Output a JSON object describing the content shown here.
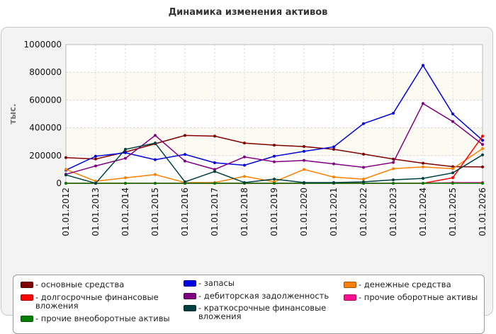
{
  "chart_data": {
    "type": "line",
    "title": "Динамика изменения активов",
    "ylabel": "тыс.",
    "xlabel": "",
    "ylim": [
      0,
      1000000
    ],
    "yticks": [
      "0",
      "200000",
      "400000",
      "600000",
      "800000",
      "1000000"
    ],
    "grid": true,
    "legend_position": "bottom",
    "categories": [
      "01.01.2012",
      "01.01.2013",
      "01.01.2014",
      "01.01.2015",
      "01.01.2016",
      "01.01.2017",
      "01.01.2018",
      "01.01.2019",
      "01.01.2020",
      "01.01.2021",
      "01.01.2022",
      "01.01.2023",
      "01.01.2024",
      "01.01.2025",
      "01.01.2026"
    ],
    "series": [
      {
        "name": "- основные средства",
        "color": "#800000",
        "values": [
          185000,
          175000,
          225000,
          285000,
          345000,
          340000,
          290000,
          275000,
          265000,
          245000,
          210000,
          175000,
          145000,
          120000,
          118000
        ]
      },
      {
        "name": "- запасы",
        "color": "#0000e0",
        "values": [
          95000,
          195000,
          220000,
          170000,
          208000,
          148000,
          130000,
          195000,
          230000,
          262000,
          430000,
          505000,
          850000,
          500000,
          310000
        ]
      },
      {
        "name": "- денежные средства",
        "color": "#ff8000",
        "values": [
          100000,
          15000,
          40000,
          63000,
          5000,
          5000,
          50000,
          10000,
          100000,
          45000,
          30000,
          105000,
          118000,
          105000,
          250000
        ]
      },
      {
        "name": "- долгосрочные финансовые вложения",
        "color": "#ff0000",
        "values": [
          0,
          0,
          0,
          0,
          0,
          0,
          0,
          0,
          0,
          0,
          0,
          0,
          0,
          40000,
          340000
        ]
      },
      {
        "name": "- дебиторская задолженность",
        "color": "#800080",
        "values": [
          65000,
          125000,
          180000,
          345000,
          160000,
          100000,
          190000,
          155000,
          165000,
          140000,
          115000,
          150000,
          575000,
          445000,
          280000
        ]
      },
      {
        "name": "- прочие оборотные активы",
        "color": "#ff1090",
        "values": [
          0,
          0,
          0,
          0,
          0,
          0,
          0,
          0,
          0,
          0,
          0,
          0,
          0,
          5000,
          5000
        ]
      },
      {
        "name": "- прочие внеоборотные активы",
        "color": "#008000",
        "values": [
          0,
          0,
          0,
          0,
          0,
          0,
          0,
          0,
          0,
          0,
          0,
          0,
          0,
          0,
          0
        ]
      },
      {
        "name": "- краткосрочные финансовые вложения",
        "color": "#004040",
        "values": [
          60000,
          0,
          245000,
          290000,
          10000,
          85000,
          5000,
          30000,
          5000,
          5000,
          10000,
          25000,
          35000,
          75000,
          205000
        ]
      }
    ]
  }
}
